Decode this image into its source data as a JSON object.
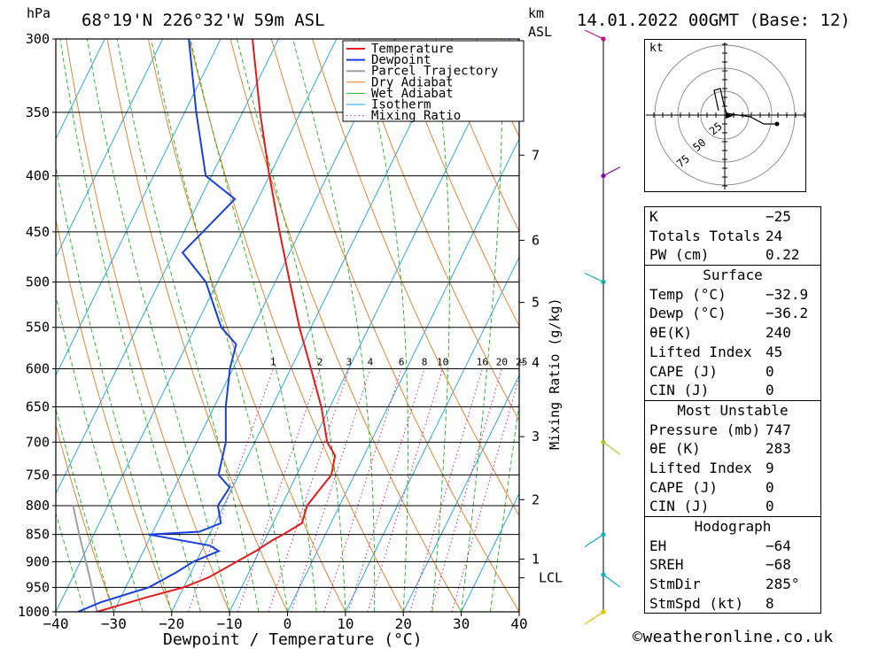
{
  "header": {
    "pressure_unit": "hPa",
    "location": "68°19'N 226°32'W 59m ASL",
    "km_label": "km",
    "asl_label": "ASL",
    "datetime": "14.01.2022 00GMT (Base: 12)"
  },
  "chart_data": {
    "type": "skew-t",
    "xlabel": "Dewpoint / Temperature (°C)",
    "ylabel": "hPa",
    "secondary_label": "Mixing Ratio (g/kg)",
    "pressure_levels": [
      300,
      350,
      400,
      450,
      500,
      550,
      600,
      650,
      700,
      750,
      800,
      850,
      900,
      950,
      1000
    ],
    "temp_ticks": [
      -40,
      -30,
      -20,
      -10,
      0,
      10,
      20,
      30,
      40
    ],
    "temp_tick_labels": [
      "−40",
      "−30",
      "−20",
      "−10",
      "0",
      "10",
      "20",
      "30",
      "40"
    ],
    "xlim": [
      -40,
      40
    ],
    "ylim": [
      1000,
      300
    ],
    "skew_deg_per_km": 4.5,
    "height_ticks_km": [
      {
        "p": 931,
        "label": "LCL"
      },
      {
        "p": 895,
        "label": "1"
      },
      {
        "p": 790,
        "label": "2"
      },
      {
        "p": 692,
        "label": "3"
      },
      {
        "p": 592,
        "label": "4"
      },
      {
        "p": 522,
        "label": "5"
      },
      {
        "p": 458,
        "label": "6"
      },
      {
        "p": 383,
        "label": "7"
      }
    ],
    "mixing_ratio_labels": [
      "1",
      "2",
      "3",
      "4",
      "6",
      "8",
      "10",
      "16",
      "20",
      "25"
    ],
    "mixing_ratio_values": [
      1,
      2,
      3,
      4,
      6,
      8,
      10,
      16,
      20,
      25
    ],
    "legend": [
      "Temperature",
      "Dewpoint",
      "Parcel Trajectory",
      "Dry Adiabat",
      "Wet Adiabat",
      "Isotherm",
      "Mixing Ratio"
    ],
    "legend_position": "top-right",
    "colors": {
      "temperature": "#e41a1c",
      "dewpoint": "#1a3fe0",
      "parcel": "#a0a0a0",
      "dry_adiabat": "#e07a20",
      "wet_adiabat": "#20b020",
      "isotherm": "#1ca0e0",
      "mixing_ratio": "#d0208a",
      "wind_profile": "#000000"
    },
    "temperature": [
      {
        "p": 1000,
        "t": -32.9
      },
      {
        "p": 970,
        "t": -25.5
      },
      {
        "p": 950,
        "t": -20.0
      },
      {
        "p": 930,
        "t": -16.5
      },
      {
        "p": 900,
        "t": -13.0
      },
      {
        "p": 880,
        "t": -10.6
      },
      {
        "p": 860,
        "t": -8.6
      },
      {
        "p": 850,
        "t": -7.3
      },
      {
        "p": 830,
        "t": -5.0
      },
      {
        "p": 800,
        "t": -5.6
      },
      {
        "p": 780,
        "t": -5.0
      },
      {
        "p": 750,
        "t": -4.0
      },
      {
        "p": 720,
        "t": -5.0
      },
      {
        "p": 700,
        "t": -7.5
      },
      {
        "p": 650,
        "t": -11.5
      },
      {
        "p": 600,
        "t": -16.5
      },
      {
        "p": 550,
        "t": -22.0
      },
      {
        "p": 500,
        "t": -27.5
      },
      {
        "p": 450,
        "t": -33.5
      },
      {
        "p": 400,
        "t": -40.0
      },
      {
        "p": 350,
        "t": -47.0
      },
      {
        "p": 300,
        "t": -54.5
      }
    ],
    "dewpoint": [
      {
        "p": 1000,
        "t": -36.2
      },
      {
        "p": 980,
        "t": -33.0
      },
      {
        "p": 950,
        "t": -26.0
      },
      {
        "p": 920,
        "t": -22.5
      },
      {
        "p": 900,
        "t": -20.5
      },
      {
        "p": 880,
        "t": -17.0
      },
      {
        "p": 870,
        "t": -19.0
      },
      {
        "p": 850,
        "t": -30.5
      },
      {
        "p": 845,
        "t": -22.0
      },
      {
        "p": 830,
        "t": -19.0
      },
      {
        "p": 800,
        "t": -21.0
      },
      {
        "p": 770,
        "t": -20.5
      },
      {
        "p": 750,
        "t": -23.5
      },
      {
        "p": 700,
        "t": -25.0
      },
      {
        "p": 650,
        "t": -28.0
      },
      {
        "p": 600,
        "t": -30.5
      },
      {
        "p": 570,
        "t": -31.5
      },
      {
        "p": 550,
        "t": -35.5
      },
      {
        "p": 500,
        "t": -42.0
      },
      {
        "p": 470,
        "t": -48.5
      },
      {
        "p": 420,
        "t": -44.0
      },
      {
        "p": 400,
        "t": -51.0
      },
      {
        "p": 350,
        "t": -58.0
      },
      {
        "p": 300,
        "t": -65.5
      }
    ],
    "parcel": [
      {
        "p": 1000,
        "t": -32.9
      },
      {
        "p": 931,
        "t": -37.0
      },
      {
        "p": 850,
        "t": -42.5
      },
      {
        "p": 800,
        "t": -46.0
      }
    ],
    "wind_profile_points_hpa": [
      300,
      400,
      500,
      700,
      850,
      925,
      1000
    ],
    "hodograph": {
      "unit_label": "kt",
      "ring_labels": [
        "25",
        "50",
        "75"
      ],
      "ring_values": [
        25,
        50,
        75
      ]
    }
  },
  "indices": {
    "k_label": "K",
    "k_value": "−25",
    "tt_label": "Totals Totals",
    "tt_value": "24",
    "pw_label": "PW (cm)",
    "pw_value": "0.22"
  },
  "surface": {
    "title": "Surface",
    "rows": [
      {
        "label": "Temp (°C)",
        "value": "−32.9"
      },
      {
        "label": "Dewp (°C)",
        "value": "−36.2"
      },
      {
        "label": "θE(K)",
        "value": "240"
      },
      {
        "label": "Lifted Index",
        "value": "45"
      },
      {
        "label": "CAPE (J)",
        "value": "0"
      },
      {
        "label": "CIN (J)",
        "value": "0"
      }
    ]
  },
  "most_unstable": {
    "title": "Most Unstable",
    "rows": [
      {
        "label": "Pressure (mb)",
        "value": "747"
      },
      {
        "label": "θE (K)",
        "value": "283"
      },
      {
        "label": "Lifted Index",
        "value": "9"
      },
      {
        "label": "CAPE (J)",
        "value": "0"
      },
      {
        "label": "CIN (J)",
        "value": "0"
      }
    ]
  },
  "hodograph_table": {
    "title": "Hodograph",
    "rows": [
      {
        "label": "EH",
        "value": "−64"
      },
      {
        "label": "SREH",
        "value": "−68"
      },
      {
        "label": "StmDir",
        "value": "285°"
      },
      {
        "label": "StmSpd (kt)",
        "value": "8"
      }
    ]
  },
  "footer": {
    "credit": "©weatheronline.co.uk"
  }
}
